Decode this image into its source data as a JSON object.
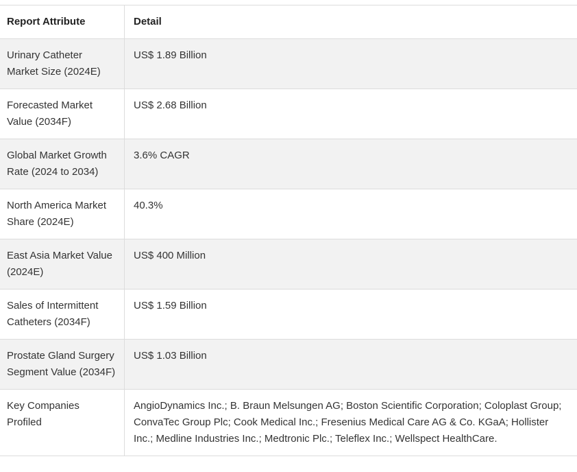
{
  "table": {
    "header": [
      "Report Attribute",
      "Detail"
    ],
    "rows": [
      [
        "Urinary Catheter Market Size (2024E)",
        "US$ 1.89 Billion"
      ],
      [
        "Forecasted Market Value (2034F)",
        "US$ 2.68 Billion"
      ],
      [
        "Global Market Growth Rate (2024 to 2034)",
        "3.6% CAGR"
      ],
      [
        "North America Market Share (2024E)",
        "40.3%"
      ],
      [
        "East Asia Market Value (2024E)",
        "US$ 400 Million"
      ],
      [
        "Sales of Intermittent Catheters (2034F)",
        "US$ 1.59 Billion"
      ],
      [
        "Prostate Gland Surgery Segment Value (2034F)",
        "US$ 1.03 Billion"
      ],
      [
        "Key Companies Profiled",
        "AngioDynamics Inc.; B. Braun Melsungen AG; Boston Scientific Corporation; Coloplast Group; ConvaTec Group Plc; Cook Medical Inc.; Fresenius Medical Care AG & Co. KGaA; Hollister Inc.; Medline Industries Inc.; Medtronic Plc.; Teleflex Inc.; Wellspect HealthCare."
      ]
    ]
  }
}
